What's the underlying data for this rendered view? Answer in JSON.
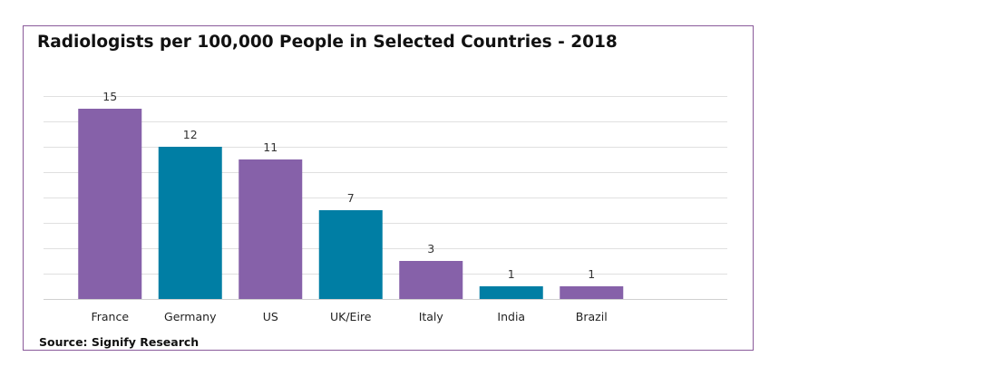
{
  "chart_data": {
    "type": "bar",
    "title": "Radiologists per 100,000 People in Selected Countries - 2018",
    "source": "Source: Signify Research",
    "categories": [
      "France",
      "Germany",
      "US",
      "UK/Eire",
      "Italy",
      "India",
      "Brazil"
    ],
    "values": [
      15,
      12,
      11,
      7,
      3,
      1,
      1
    ],
    "data_labels": [
      "15",
      "12",
      "11",
      "7",
      "3",
      "1",
      "1"
    ],
    "bar_colors": [
      "#8661a9",
      "#007ea4",
      "#8661a9",
      "#007ea4",
      "#8661a9",
      "#007ea4",
      "#8661a9"
    ],
    "ylim": [
      0,
      16
    ],
    "ytick_step": 2,
    "grid": true,
    "xlabel": "",
    "ylabel": ""
  }
}
